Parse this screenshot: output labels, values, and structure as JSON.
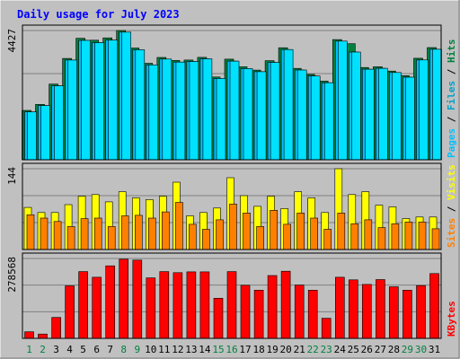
{
  "chart_data": {
    "title": "Daily usage for July 2023",
    "type": "bar",
    "categories": [
      "1",
      "2",
      "3",
      "4",
      "5",
      "6",
      "7",
      "8",
      "9",
      "10",
      "11",
      "12",
      "13",
      "14",
      "15",
      "16",
      "17",
      "18",
      "19",
      "20",
      "21",
      "22",
      "23",
      "24",
      "25",
      "26",
      "27",
      "28",
      "29",
      "30",
      "31"
    ],
    "weekend_days": [
      1,
      2,
      8,
      9,
      15,
      16,
      22,
      23,
      29,
      30
    ],
    "panels": [
      {
        "y_tick_label": "4427",
        "y_tick_value": 4427,
        "legend": [
          "Pages",
          "Files",
          "Hits"
        ],
        "series": [
          {
            "name": "Hits",
            "color": "#008040",
            "values": [
              1690,
              1896,
              2593,
              3471,
              4158,
              4094,
              4174,
              4427,
              3829,
              3304,
              3505,
              3404,
              3415,
              3509,
              2834,
              3447,
              3185,
              3070,
              3393,
              3838,
              3130,
              2923,
              2693,
              4118,
              3975,
              3159,
              3186,
              3038,
              2880,
              3476,
              3844
            ]
          },
          {
            "name": "Files",
            "color": "#00c0ff",
            "values": [
              1640,
              1856,
              2534,
              3416,
              4088,
              4011,
              4098,
              4372,
              3770,
              3250,
              3448,
              3345,
              3365,
              3460,
              2784,
              3380,
              3125,
              3017,
              3336,
              3776,
              3075,
              2868,
              2639,
              4063,
              3690,
              3103,
              3132,
              2987,
              2829,
              3418,
              3784
            ]
          },
          {
            "name": "Pages",
            "color": "#00e0ff",
            "values": [
              1640,
              1856,
              2534,
              3416,
              4088,
              4011,
              4098,
              4372,
              3770,
              3250,
              3448,
              3345,
              3365,
              3460,
              2784,
              3380,
              3125,
              3017,
              3336,
              3776,
              3075,
              2868,
              2639,
              4063,
              3690,
              3103,
              3132,
              2987,
              2829,
              3418,
              3784
            ]
          }
        ]
      },
      {
        "y_tick_label": "144",
        "y_tick_value": 144,
        "legend": [
          "Sites",
          "Visits"
        ],
        "series": [
          {
            "name": "Visits",
            "color": "#ffff00",
            "values": [
              75,
              66,
              66,
              80,
              95,
              98,
              85,
              103,
              92,
              89,
              95,
              120,
              60,
              66,
              74,
              128,
              96,
              77,
              95,
              73,
              103,
              92,
              66,
              144,
              98,
              103,
              79,
              76,
              55,
              58,
              58
            ]
          },
          {
            "name": "Sites",
            "color": "#ff8000",
            "values": [
              62,
              56,
              50,
              41,
              55,
              56,
              41,
              60,
              61,
              56,
              67,
              84,
              45,
              36,
              53,
              81,
              65,
              41,
              70,
              45,
              65,
              56,
              36,
              65,
              46,
              53,
              39,
              46,
              49,
              49,
              37
            ]
          }
        ]
      },
      {
        "y_tick_label": "278568",
        "y_tick_value": 278568,
        "legend": [
          "KBytes"
        ],
        "series": [
          {
            "name": "KBytes",
            "color": "#ff0000",
            "values": [
              23000,
              15000,
              73000,
              183000,
              233000,
              213000,
              253000,
              276000,
              273000,
              211000,
              233000,
              229000,
              232000,
              232000,
              140000,
              233000,
              185000,
              168000,
              219000,
              234000,
              186000,
              168000,
              70000,
              213000,
              204000,
              188000,
              205000,
              180000,
              168000,
              184000,
              226000
            ]
          }
        ]
      }
    ]
  }
}
